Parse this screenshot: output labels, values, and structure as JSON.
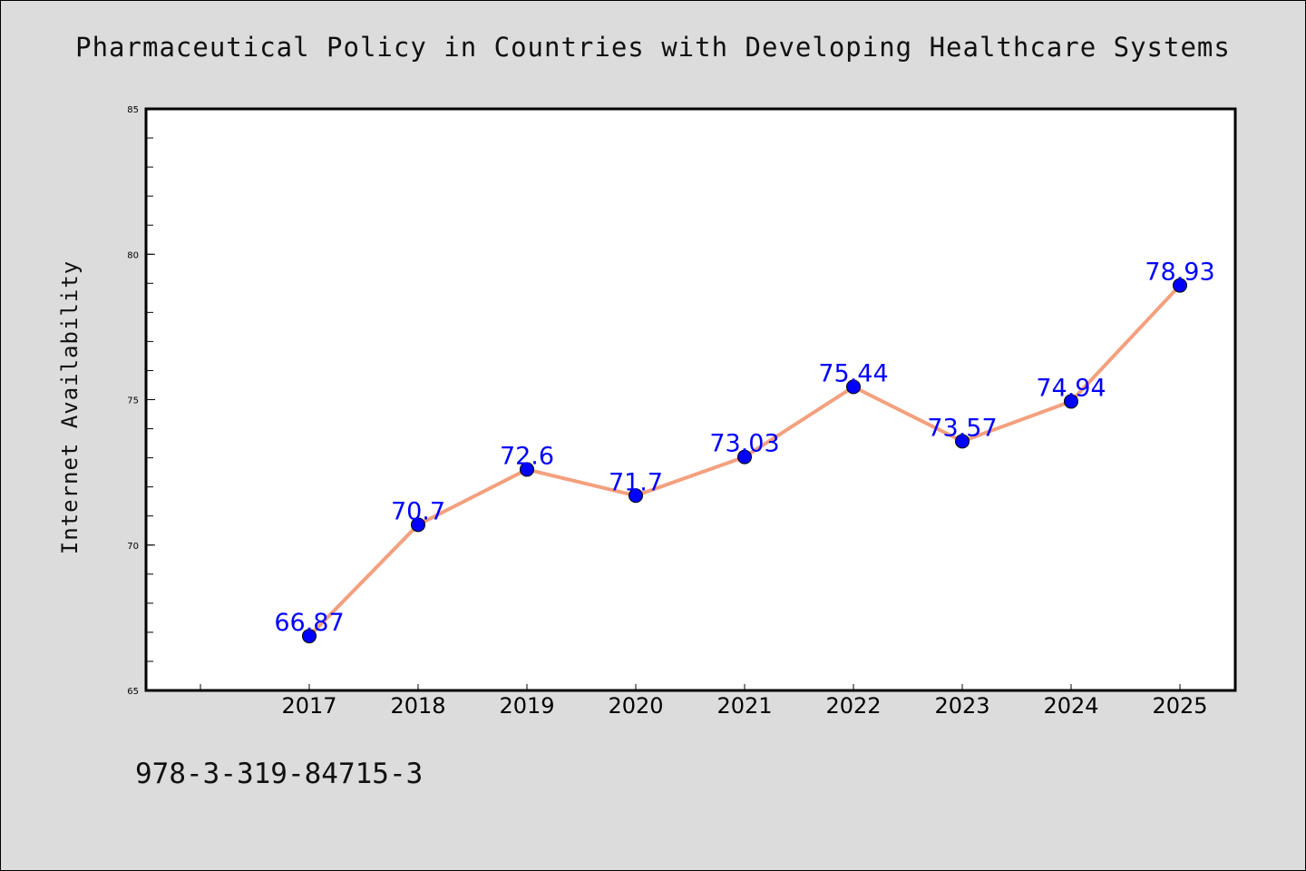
{
  "chart_data": {
    "type": "line",
    "title": "Pharmaceutical Policy in Countries with Developing Healthcare Systems",
    "xlabel": "",
    "ylabel": "Internet Availability",
    "categories": [
      "2017",
      "2018",
      "2019",
      "2020",
      "2021",
      "2022",
      "2023",
      "2024",
      "2025"
    ],
    "values": [
      66.87,
      70.7,
      72.6,
      71.7,
      73.03,
      75.44,
      73.57,
      74.94,
      78.93
    ],
    "data_labels": [
      "66.87",
      "70.7",
      "72.6",
      "71.7",
      "73.03",
      "75.44",
      "73.57",
      "74.94",
      "78.93"
    ],
    "ylim": [
      65,
      85
    ],
    "yticks": [
      "65",
      "70",
      "75",
      "80",
      "85"
    ],
    "grid": false,
    "legend": "none",
    "line_color": "#f4a07e",
    "marker_color": "#0000ff"
  },
  "footnote": "978-3-319-84715-3"
}
